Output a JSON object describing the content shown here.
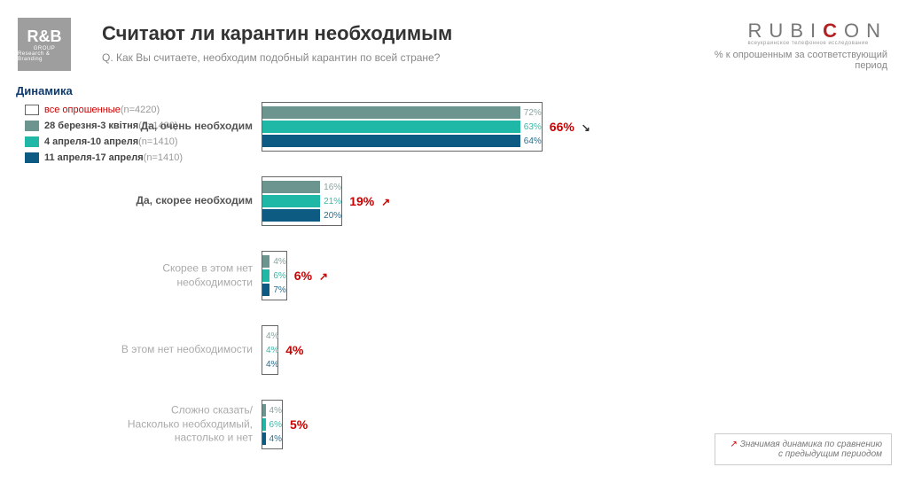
{
  "header": {
    "logo_left_text": "R&B",
    "logo_left_sub1": "GROUP",
    "logo_left_sub2": "Research & Branding",
    "title": "Считают ли карантин необходимым",
    "subtitle": "Q. Как Вы считаете, необходим подобный карантин по всей стране?",
    "rubicon_r": "RUBI",
    "rubicon_c": "C",
    "rubicon_on": "ON",
    "rubicon_sub": "всеукраинское телефонное исследование",
    "pct_label": "% к опрошенным за соответствующий период"
  },
  "dynamics_label": "Динамика",
  "legend": {
    "items": [
      {
        "label_red": "все опрошенные",
        "label_rest": "",
        "n": "(n=4220)",
        "color": "#ffffff",
        "border": "#666666"
      },
      {
        "label_red": "",
        "label_rest": "28 березня-3 квітня",
        "n": "(n=1400)",
        "color": "#6d9590",
        "border": "#6d9590"
      },
      {
        "label_red": "",
        "label_rest": "4 апреля-10 апреля",
        "n": "(n=1410)",
        "color": "#1fb7a6",
        "border": "#1fb7a6"
      },
      {
        "label_red": "",
        "label_rest": "11 апреля-17 апреля",
        "n": "(n=1410)",
        "color": "#0d5a82",
        "border": "#0d5a82"
      }
    ]
  },
  "chart": {
    "type": "grouped-bar",
    "max_value": 100,
    "bar_area_width": 480,
    "series_colors": [
      "#6d9590",
      "#1fb7a6",
      "#0d5a82"
    ],
    "value_text_colors": [
      "#8aa39f",
      "#3bb7a8",
      "#2b6e8e"
    ],
    "main_value_color": "#c30000",
    "label_color": "#555555",
    "label_light_color": "#aaaaaa",
    "label_fontsize": 12,
    "value_fontsize": 10,
    "main_value_fontsize": 14,
    "background_color": "#ffffff",
    "border_color": "#666666",
    "groups": [
      {
        "label": "Да, очень необходим",
        "light": false,
        "outer": 66,
        "arrow": "down-dark",
        "bars": [
          {
            "v": 72,
            "txt": "72%"
          },
          {
            "v": 63,
            "txt": "63%"
          },
          {
            "v": 64,
            "txt": "64%"
          }
        ]
      },
      {
        "label": "Да, скорее необходим",
        "light": false,
        "outer": 19,
        "arrow": "up-red",
        "bars": [
          {
            "v": 16,
            "txt": "16%"
          },
          {
            "v": 21,
            "txt": "21%"
          },
          {
            "v": 20,
            "txt": "20%"
          }
        ]
      },
      {
        "label": "Скорее в этом нет необходимости",
        "light": true,
        "outer": 6,
        "arrow": "up-red",
        "bars": [
          {
            "v": 4,
            "txt": "4%"
          },
          {
            "v": 6,
            "txt": "6%"
          },
          {
            "v": 7,
            "txt": "7%"
          }
        ]
      },
      {
        "label": "В этом нет необходимости",
        "light": true,
        "outer": 4,
        "arrow": null,
        "bars": [
          {
            "v": 4,
            "txt": "4%"
          },
          {
            "v": 4,
            "txt": "4%"
          },
          {
            "v": 4,
            "txt": "4%"
          }
        ]
      },
      {
        "label": "Сложно сказать/\nНасколько необходимый, настолько и нет",
        "light": true,
        "outer": 5,
        "arrow": null,
        "bars": [
          {
            "v": 4,
            "txt": "4%"
          },
          {
            "v": 6,
            "txt": "6%"
          },
          {
            "v": 4,
            "txt": "4%"
          }
        ]
      }
    ]
  },
  "footnote": {
    "arrow": "↗",
    "text": "Значимая динамика по сравнению с предыдущим периодом"
  }
}
